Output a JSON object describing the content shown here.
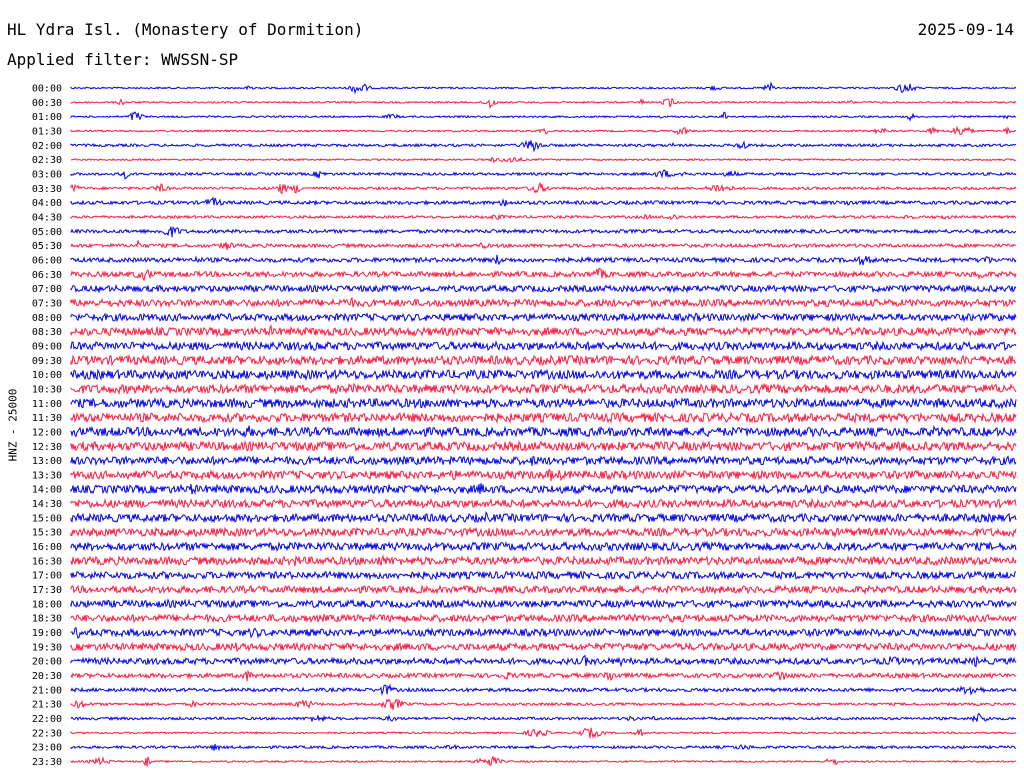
{
  "header": {
    "station": "HL Ydra Isl. (Monastery of Dormition)",
    "date": "2025-09-14",
    "filter": "Applied filter: WWSSN-SP"
  },
  "channel_label": "HNZ - 25000",
  "colors": {
    "trace_a": "#0000ee",
    "trace_b": "#ff1a40"
  },
  "chart_data": {
    "type": "line",
    "subtype": "helicorder",
    "title": "HL Ydra Isl. (Monastery of Dormition)",
    "date": "2025-09-14",
    "filter": "WWSSN-SP",
    "ylabel": "HNZ - 25000",
    "rows": [
      "00:00",
      "00:30",
      "01:00",
      "01:30",
      "02:00",
      "02:30",
      "03:00",
      "03:30",
      "04:00",
      "04:30",
      "05:00",
      "05:30",
      "06:00",
      "06:30",
      "07:00",
      "07:30",
      "08:00",
      "08:30",
      "09:00",
      "09:30",
      "10:00",
      "10:30",
      "11:00",
      "11:30",
      "12:00",
      "12:30",
      "13:00",
      "13:30",
      "14:00",
      "14:30",
      "15:00",
      "15:30",
      "16:00",
      "16:30",
      "17:00",
      "17:30",
      "18:00",
      "18:30",
      "19:00",
      "19:30",
      "20:00",
      "20:30",
      "21:00",
      "21:30",
      "22:00",
      "22:30",
      "23:00",
      "23:30"
    ],
    "row_colors": "alternating blue / red",
    "noise_level": [
      1,
      1,
      1,
      1,
      2,
      1,
      2,
      2,
      3,
      2,
      3,
      3,
      4,
      5,
      6,
      7,
      7,
      8,
      8,
      9,
      9,
      9,
      9,
      9,
      9,
      9,
      8,
      8,
      8,
      8,
      8,
      8,
      8,
      8,
      7,
      7,
      7,
      7,
      7,
      7,
      6,
      4,
      3,
      2,
      2,
      1,
      2,
      1
    ]
  }
}
